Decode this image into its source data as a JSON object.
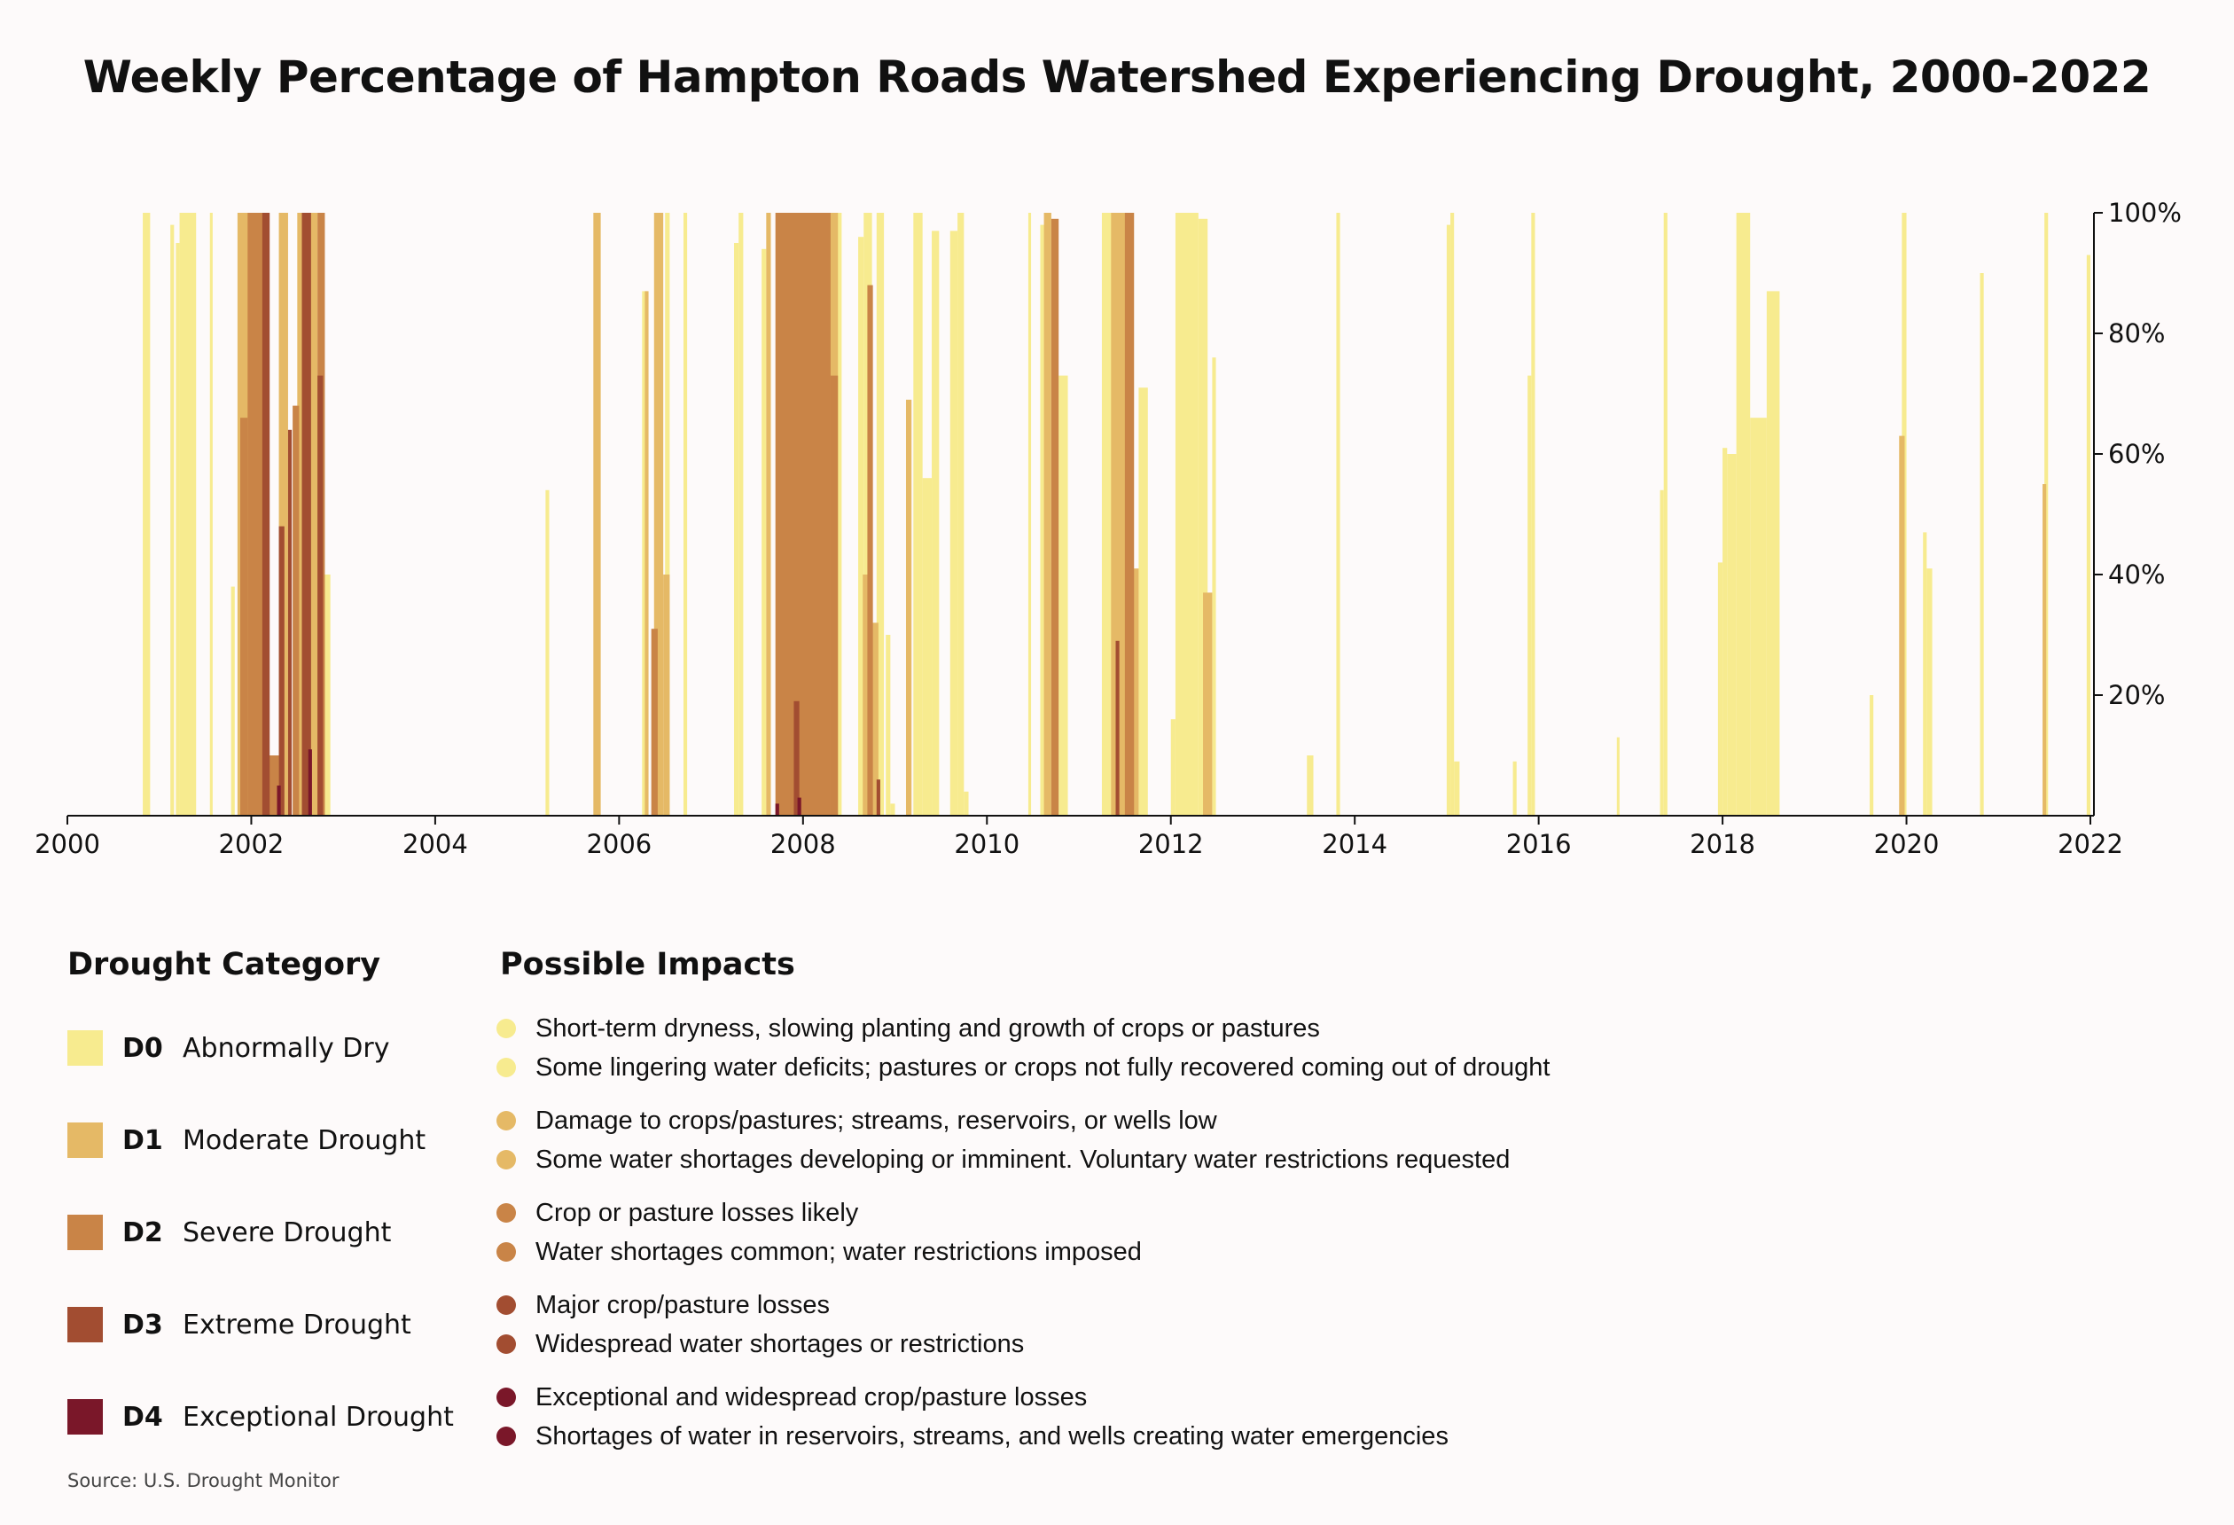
{
  "title": "Weekly Percentage of Hampton Roads Watershed Experiencing Drought, 2000-2022",
  "source": "Source: U.S. Drought Monitor",
  "colors": {
    "D0": "#f7eb8f",
    "D1": "#e5b966",
    "D2": "#c98447",
    "D3": "#a24d31",
    "D4": "#7a1729",
    "axis": "#111111",
    "background": "#fdfafa"
  },
  "legend": {
    "category_heading": "Drought Category",
    "impacts_heading": "Possible Impacts",
    "categories": [
      {
        "code": "D0",
        "name": "Abnormally Dry",
        "color": "#f7eb8f",
        "impacts": [
          "Short-term dryness, slowing planting and growth of crops or pastures",
          "Some lingering water deficits; pastures or crops not fully recovered coming out of drought"
        ]
      },
      {
        "code": "D1",
        "name": "Moderate Drought",
        "color": "#e5b966",
        "impacts": [
          "Damage to crops/pastures; streams, reservoirs, or wells low",
          "Some water shortages developing or imminent. Voluntary water restrictions requested"
        ]
      },
      {
        "code": "D2",
        "name": "Severe Drought",
        "color": "#c98447",
        "impacts": [
          "Crop or pasture losses likely",
          "Water shortages common; water restrictions imposed"
        ]
      },
      {
        "code": "D3",
        "name": "Extreme Drought",
        "color": "#a24d31",
        "impacts": [
          "Major crop/pasture losses",
          "Widespread water shortages or restrictions"
        ]
      },
      {
        "code": "D4",
        "name": "Exceptional Drought",
        "color": "#7a1729",
        "impacts": [
          "Exceptional and widespread crop/pasture losses",
          "Shortages of water in reservoirs, streams, and wells creating water emergencies"
        ]
      }
    ]
  },
  "chart_data": {
    "type": "bar",
    "title": "Weekly Percentage of Hampton Roads Watershed Experiencing Drought, 2000-2022",
    "xlabel": "",
    "ylabel": "",
    "x_unit": "year",
    "xlim": [
      2000,
      2022
    ],
    "ylim": [
      0,
      100
    ],
    "x_ticks": [
      "2000",
      "2002",
      "2004",
      "2006",
      "2008",
      "2010",
      "2012",
      "2014",
      "2016",
      "2018",
      "2020",
      "2022"
    ],
    "y_ticks": [
      "20%",
      "40%",
      "60%",
      "80%",
      "100%"
    ],
    "y_axis_side": "right",
    "grid": false,
    "series": [
      {
        "name": "D0",
        "color": "#f7eb8f",
        "bars": [
          [
            2000.82,
            2000.9,
            100
          ],
          [
            2001.12,
            2001.16,
            98
          ],
          [
            2001.18,
            2001.22,
            95
          ],
          [
            2001.22,
            2001.4,
            100
          ],
          [
            2001.55,
            2001.58,
            100
          ],
          [
            2001.78,
            2001.82,
            38
          ],
          [
            2002.78,
            2002.86,
            40
          ],
          [
            2005.2,
            2005.24,
            54
          ],
          [
            2006.25,
            2006.3,
            87
          ],
          [
            2006.5,
            2006.55,
            100
          ],
          [
            2006.7,
            2006.74,
            100
          ],
          [
            2007.25,
            2007.3,
            95
          ],
          [
            2007.3,
            2007.35,
            100
          ],
          [
            2007.55,
            2007.6,
            94
          ],
          [
            2008.35,
            2008.42,
            100
          ],
          [
            2008.6,
            2008.66,
            96
          ],
          [
            2008.66,
            2008.75,
            100
          ],
          [
            2008.8,
            2008.88,
            100
          ],
          [
            2008.9,
            2008.95,
            30
          ],
          [
            2008.95,
            2009.0,
            2
          ],
          [
            2009.2,
            2009.3,
            100
          ],
          [
            2009.3,
            2009.4,
            56
          ],
          [
            2009.4,
            2009.48,
            97
          ],
          [
            2009.6,
            2009.68,
            97
          ],
          [
            2009.68,
            2009.75,
            100
          ],
          [
            2009.75,
            2009.8,
            4
          ],
          [
            2010.45,
            2010.48,
            100
          ],
          [
            2010.58,
            2010.65,
            98
          ],
          [
            2010.78,
            2010.88,
            73
          ],
          [
            2011.25,
            2011.48,
            100
          ],
          [
            2011.65,
            2011.75,
            71
          ],
          [
            2012.0,
            2012.05,
            16
          ],
          [
            2012.05,
            2012.3,
            100
          ],
          [
            2012.3,
            2012.4,
            99
          ],
          [
            2012.45,
            2012.49,
            76
          ],
          [
            2013.48,
            2013.55,
            10
          ],
          [
            2013.8,
            2013.84,
            100
          ],
          [
            2015.0,
            2015.04,
            98
          ],
          [
            2015.04,
            2015.08,
            100
          ],
          [
            2015.08,
            2015.14,
            9
          ],
          [
            2015.72,
            2015.76,
            9
          ],
          [
            2015.88,
            2015.92,
            73
          ],
          [
            2015.92,
            2015.96,
            100
          ],
          [
            2016.85,
            2016.88,
            13
          ],
          [
            2017.32,
            2017.36,
            54
          ],
          [
            2017.36,
            2017.4,
            100
          ],
          [
            2017.95,
            2018.0,
            42
          ],
          [
            2018.0,
            2018.05,
            61
          ],
          [
            2018.05,
            2018.15,
            60
          ],
          [
            2018.15,
            2018.3,
            100
          ],
          [
            2018.3,
            2018.48,
            66
          ],
          [
            2018.48,
            2018.62,
            87
          ],
          [
            2019.6,
            2019.64,
            20
          ],
          [
            2019.95,
            2020.0,
            100
          ],
          [
            2020.18,
            2020.22,
            47
          ],
          [
            2020.22,
            2020.28,
            41
          ],
          [
            2020.8,
            2020.84,
            90
          ],
          [
            2021.5,
            2021.54,
            100
          ],
          [
            2021.96,
            2022.0,
            93
          ]
        ]
      },
      {
        "name": "D1",
        "color": "#e5b966",
        "bars": [
          [
            2001.85,
            2002.0,
            100
          ],
          [
            2002.3,
            2002.4,
            100
          ],
          [
            2002.5,
            2002.72,
            100
          ],
          [
            2005.72,
            2005.8,
            100
          ],
          [
            2006.28,
            2006.32,
            87
          ],
          [
            2006.38,
            2006.48,
            100
          ],
          [
            2006.48,
            2006.55,
            40
          ],
          [
            2007.6,
            2007.65,
            100
          ],
          [
            2008.25,
            2008.38,
            100
          ],
          [
            2008.65,
            2008.75,
            40
          ],
          [
            2008.75,
            2008.82,
            32
          ],
          [
            2009.12,
            2009.18,
            69
          ],
          [
            2010.62,
            2010.7,
            100
          ],
          [
            2010.7,
            2010.76,
            42
          ],
          [
            2011.35,
            2011.52,
            100
          ],
          [
            2011.52,
            2011.65,
            41
          ],
          [
            2012.35,
            2012.45,
            37
          ],
          [
            2019.92,
            2019.98,
            63
          ],
          [
            2021.48,
            2021.52,
            55
          ]
        ]
      },
      {
        "name": "D2",
        "color": "#c98447",
        "bars": [
          [
            2001.88,
            2001.96,
            66
          ],
          [
            2001.96,
            2002.18,
            100
          ],
          [
            2002.18,
            2002.3,
            10
          ],
          [
            2002.45,
            2002.52,
            68
          ],
          [
            2002.72,
            2002.8,
            100
          ],
          [
            2006.35,
            2006.42,
            31
          ],
          [
            2007.7,
            2008.3,
            100
          ],
          [
            2008.3,
            2008.38,
            73
          ],
          [
            2008.7,
            2008.76,
            88
          ],
          [
            2010.7,
            2010.78,
            99
          ],
          [
            2011.5,
            2011.6,
            100
          ]
        ]
      },
      {
        "name": "D3",
        "color": "#a24d31",
        "bars": [
          [
            2002.12,
            2002.2,
            100
          ],
          [
            2002.3,
            2002.36,
            48
          ],
          [
            2002.4,
            2002.44,
            64
          ],
          [
            2002.55,
            2002.65,
            100
          ],
          [
            2002.72,
            2002.78,
            73
          ],
          [
            2007.9,
            2007.96,
            19
          ],
          [
            2008.8,
            2008.84,
            6
          ],
          [
            2011.4,
            2011.44,
            29
          ]
        ]
      },
      {
        "name": "D4",
        "color": "#7a1729",
        "bars": [
          [
            2002.28,
            2002.32,
            5
          ],
          [
            2002.62,
            2002.66,
            11
          ],
          [
            2007.7,
            2007.74,
            2
          ],
          [
            2007.94,
            2007.98,
            3
          ]
        ]
      }
    ]
  }
}
